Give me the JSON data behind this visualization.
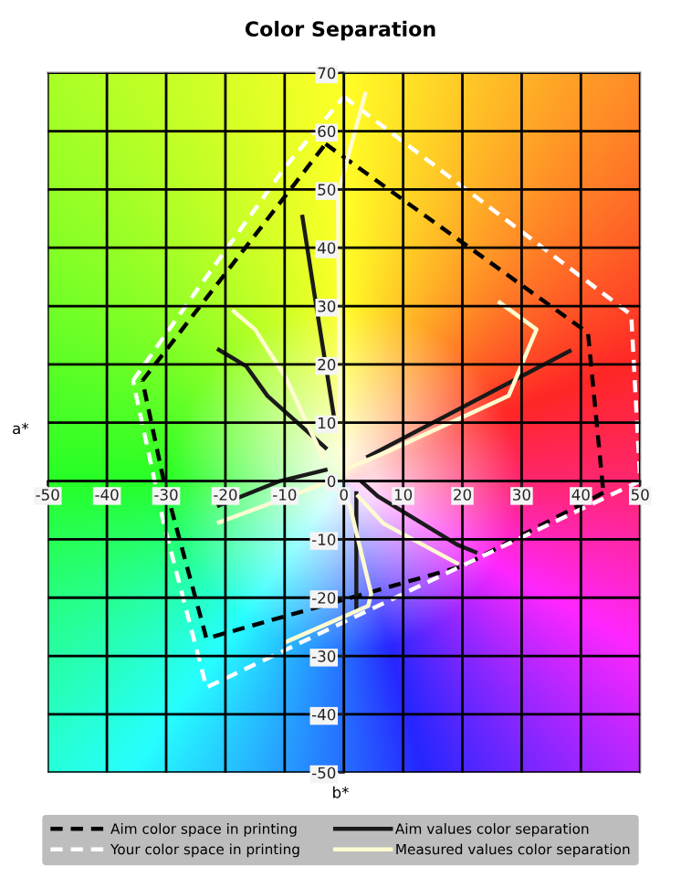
{
  "chart_data": {
    "type": "line",
    "title": "Color Separation",
    "xlabel": "b*",
    "ylabel": "a*",
    "xlim": [
      -50,
      50
    ],
    "ylim": [
      -50,
      70
    ],
    "xticks": [
      -50,
      -40,
      -30,
      -20,
      -10,
      0,
      10,
      20,
      30,
      40,
      50
    ],
    "yticks": [
      -50,
      -40,
      -30,
      -20,
      -10,
      0,
      10,
      20,
      30,
      40,
      50,
      60,
      70
    ],
    "grid": true,
    "legend": "bottom",
    "marker": "none",
    "series": [
      {
        "name": "Aim color space in printing",
        "color": "#000000",
        "line_style": "dashed",
        "x": [
          -3.1,
          41.2,
          43.8
        ],
        "values": [
          57.8,
          25.4,
          -2
        ]
      },
      {
        "name": "Your color space in printing",
        "color": "#ffffff",
        "line_style": "dashed",
        "x": [
          0,
          48.5,
          50
        ],
        "values": [
          65.9,
          28.5,
          0
        ]
      },
      {
        "color": "#000000",
        "line_style": "dashed",
        "x": [
          43.8,
          20,
          -23.2,
          -30.4,
          -34
        ],
        "values": [
          -2,
          -14.6,
          -27,
          0,
          17.2
        ]
      },
      {
        "color": "#000000",
        "line_style": "dashed",
        "x": [
          -34,
          -3.1
        ],
        "values": [
          17.2,
          57.8
        ]
      },
      {
        "color": "#ffffff",
        "line_style": "dashed",
        "x": [
          50,
          -23.2,
          -30.4,
          -35.6
        ],
        "values": [
          0,
          -35.4,
          -7.3,
          17.2
        ]
      },
      {
        "color": "#ffffff",
        "line_style": "dashed",
        "x": [
          -35.6,
          -26.3,
          -9.8,
          0
        ],
        "values": [
          17.2,
          30.6,
          54,
          65.9
        ]
      },
      {
        "name": "Aim values color separation",
        "color": "#1a1a1a",
        "line_style": "solid",
        "x": [
          -7,
          -4.6,
          -1.5
        ],
        "values": [
          45.3,
          29.6,
          9.9
        ]
      },
      {
        "color": "#1a1a1a",
        "line_style": "solid",
        "x": [
          -21.1,
          -16.5,
          -12.9,
          -3.1
        ],
        "values": [
          22.5,
          19.7,
          14.6,
          5.7
        ]
      },
      {
        "color": "#1a1a1a",
        "line_style": "solid",
        "x": [
          -21.1,
          -10.8,
          -3.1
        ],
        "values": [
          -4.2,
          0,
          1.9
        ]
      },
      {
        "color": "#1a1a1a",
        "line_style": "solid",
        "x": [
          4.1,
          38.1
        ],
        "values": [
          4.2,
          22.3
        ]
      },
      {
        "color": "#1a1a1a",
        "line_style": "solid",
        "x": [
          3.1,
          5.7,
          19.1,
          22.2
        ],
        "values": [
          -0.2,
          -2.6,
          -10.9,
          -12.2
        ]
      },
      {
        "color": "#1a1a1a",
        "line_style": "solid",
        "x": [
          2.1,
          2.1
        ],
        "values": [
          -2.1,
          -21.9
        ]
      },
      {
        "name": "Measured values color separation",
        "color": "#fffbd0",
        "line_style": "solid",
        "x": [
          -0.7,
          -1,
          3.6
        ],
        "values": [
          8.3,
          49.3,
          66.4
        ]
      },
      {
        "color": "#fffbd0",
        "line_style": "solid",
        "x": [
          -18.6,
          -15,
          -9.8,
          -3.6
        ],
        "values": [
          29.1,
          26,
          17.7,
          4.2
        ]
      },
      {
        "color": "#fffbd0",
        "line_style": "solid",
        "x": [
          -21.1,
          -3.6
        ],
        "values": [
          -7.1,
          -0.5
        ]
      },
      {
        "color": "#fffbd0",
        "line_style": "solid",
        "x": [
          0.5,
          7.7,
          27.8,
          32.5,
          26.3
        ],
        "values": [
          2.1,
          5.2,
          14.6,
          26,
          30.6
        ]
      },
      {
        "color": "#fffbd0",
        "line_style": "solid",
        "x": [
          2.4,
          6.7,
          19.1
        ],
        "values": [
          -2.6,
          -7.3,
          -14.1
        ]
      },
      {
        "color": "#fffbd0",
        "line_style": "solid",
        "x": [
          1,
          4.6,
          4.1,
          -9.8
        ],
        "values": [
          -4.2,
          -19.3,
          -21.4,
          -27.6
        ]
      }
    ]
  }
}
